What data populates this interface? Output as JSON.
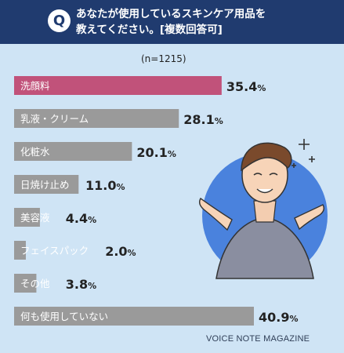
{
  "header": {
    "q_mark": "Q",
    "question": "あなたが使用しているスキンケア用品を\n教えてください。[複数回答可]"
  },
  "sample_size": "(n=1215)",
  "watermark": "VOICE NOTE MAGAZINE",
  "colors": {
    "header_bg": "#203b6f",
    "background": "#cfe4f5",
    "highlight_bar": "#c1527a",
    "default_bar": "#9a9a9a",
    "value_text": "#222222"
  },
  "chart_data": {
    "type": "bar",
    "orientation": "horizontal",
    "title": "あなたが使用しているスキンケア用品を教えてください。[複数回答可]",
    "sample_size": "(n=1215)",
    "unit": "%",
    "categories": [
      "洗顔料",
      "乳液・クリーム",
      "化粧水",
      "日焼け止め",
      "美容液",
      "フェイスパック",
      "その他",
      "何も使用していない"
    ],
    "values": [
      35.4,
      28.1,
      20.1,
      11.0,
      4.4,
      2.0,
      3.8,
      40.9
    ],
    "value_labels": [
      "35.4",
      "28.1",
      "20.1",
      "11.0",
      "4.4",
      "2.0",
      "3.8",
      "40.9"
    ],
    "highlight_category": "洗顔料",
    "xlim": [
      0,
      40.9
    ],
    "grid": false
  }
}
